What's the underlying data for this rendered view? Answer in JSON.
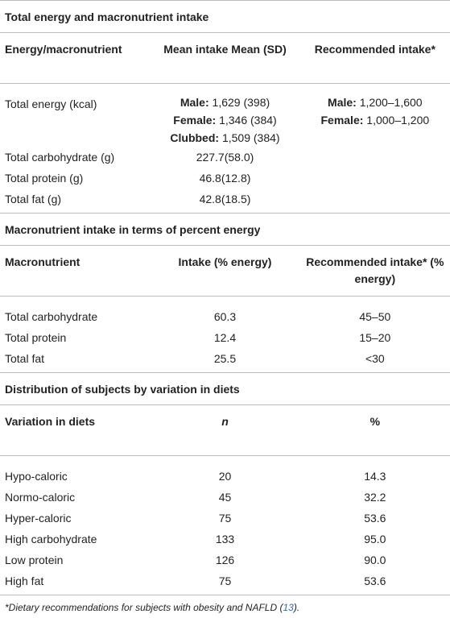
{
  "sections": [
    {
      "title": "Total energy and macronutrient intake",
      "columns": [
        "Energy/macronutrient",
        "Mean intake Mean (SD)",
        "Recommended intake*"
      ],
      "rows": [
        [
          "Total energy (kcal)",
          [
            {
              "label": "Male:",
              "value": "1,629 (398)"
            },
            {
              "label": "Female:",
              "value": "1,346 (384)"
            },
            {
              "label": "Clubbed:",
              "value": "1,509 (384)"
            }
          ],
          [
            {
              "label": "Male:",
              "value": "1,200–1,600"
            },
            {
              "label": "Female:",
              "value": "1,000–1,200"
            }
          ]
        ],
        [
          "Total carbohydrate (g)",
          "227.7(58.0)"
        ],
        [
          "Total protein (g)",
          "46.8(12.8)"
        ],
        [
          "Total fat (g)",
          "42.8(18.5)"
        ]
      ]
    },
    {
      "title": "Macronutrient intake in terms of percent energy",
      "columns": [
        "Macronutrient",
        "Intake (% energy)",
        "Recommended intake* (% energy)"
      ],
      "rows": [
        [
          "Total carbohydrate",
          "60.3",
          "45–50"
        ],
        [
          "Total protein",
          "12.4",
          "15–20"
        ],
        [
          "Total fat",
          "25.5",
          "<30"
        ]
      ]
    },
    {
      "title": "Distribution of subjects by variation in diets",
      "columns": [
        "Variation in diets",
        "n",
        "%"
      ],
      "italic_columns": [
        1
      ],
      "rows": [
        [
          "Hypo-caloric",
          "20",
          "14.3"
        ],
        [
          "Normo-caloric",
          "45",
          "32.2"
        ],
        [
          "Hyper-caloric",
          "75",
          "53.6"
        ],
        [
          "High carbohydrate",
          "133",
          "95.0"
        ],
        [
          "Low protein",
          "126",
          "90.0"
        ],
        [
          "High fat",
          "75",
          "53.6"
        ]
      ]
    }
  ],
  "footnote": {
    "text": "*Dietary recommendations for subjects with obesity and NAFLD (",
    "ref": "13",
    "end": ")."
  }
}
